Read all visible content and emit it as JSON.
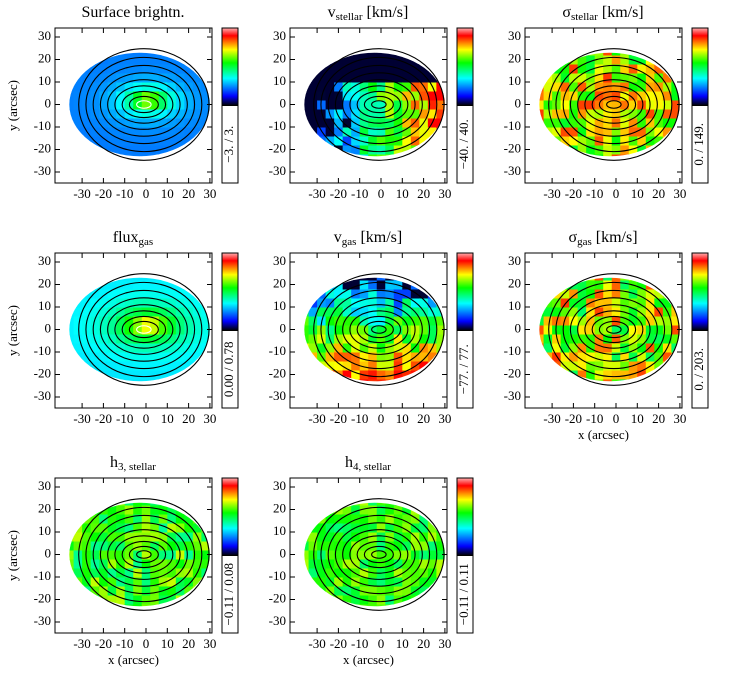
{
  "figure": {
    "xticks": [
      -30,
      -20,
      -10,
      0,
      10,
      20,
      30
    ],
    "yticks": [
      -30,
      -20,
      -10,
      0,
      10,
      20,
      30
    ],
    "panels": [
      {
        "title": {
          "main": "Surface brightn."
        },
        "colorbar": "−3. / 3.",
        "ylabel": "y (arcsec)"
      },
      {
        "title": {
          "main": "v",
          "sub": "stellar",
          "rest": " [km/s]"
        },
        "colorbar": "−40. / 40."
      },
      {
        "title": {
          "main": "σ",
          "sub": "stellar",
          "rest": " [km/s]"
        },
        "colorbar": "0. / 149."
      },
      {
        "title": {
          "main": "flux",
          "sub": "gas"
        },
        "colorbar": "0.00 / 0.78",
        "ylabel": "y (arcsec)"
      },
      {
        "title": {
          "main": "v",
          "sub": "gas",
          "rest": " [km/s]"
        },
        "colorbar": "−77. / 77."
      },
      {
        "title": {
          "main": "σ",
          "sub": "gas",
          "rest": " [km/s]"
        },
        "colorbar": "0. / 203.",
        "xlabel": "x (arcsec)"
      },
      {
        "title": {
          "main": "h",
          "sub": "3, stellar"
        },
        "colorbar": "−0.11 / 0.08",
        "ylabel": "y (arcsec)",
        "xlabel": "x (arcsec)"
      },
      {
        "title": {
          "main": "h",
          "sub": "4, stellar"
        },
        "colorbar": "−0.11 / 0.11",
        "xlabel": "x (arcsec)"
      }
    ]
  }
}
